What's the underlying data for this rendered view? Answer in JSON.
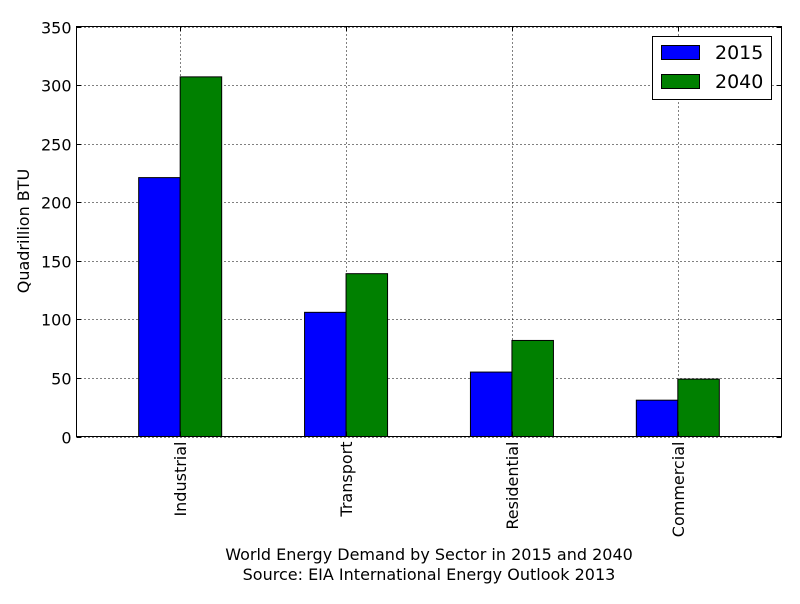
{
  "chart_data": {
    "type": "bar",
    "categories": [
      "Industrial",
      "Transport",
      "Residential",
      "Commercial"
    ],
    "series": [
      {
        "name": "2015",
        "values": [
          221,
          106,
          55,
          31
        ],
        "color": "#0000ff"
      },
      {
        "name": "2040",
        "values": [
          307,
          139,
          82,
          49
        ],
        "color": "#008000"
      }
    ],
    "ylabel": "Quadrillion BTU",
    "xlabel": [
      "World Energy Demand by Sector in 2015 and 2040",
      "Source: EIA International Energy Outlook 2013"
    ],
    "ylim": [
      0,
      350
    ],
    "yticks": [
      "0",
      "50",
      "100",
      "150",
      "200",
      "250",
      "300",
      "350"
    ],
    "grid": true,
    "legend_position": "top-right"
  }
}
